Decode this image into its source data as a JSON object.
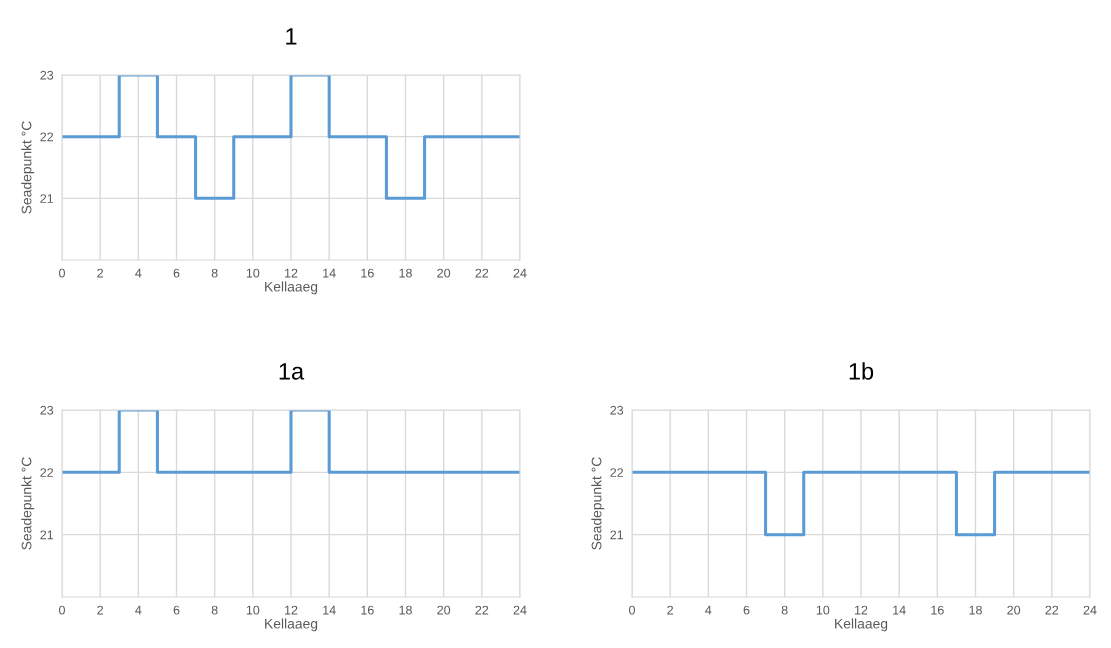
{
  "chart_data": [
    {
      "type": "step",
      "title": "1",
      "xlabel": "Kellaaeg",
      "ylabel": "Seadepunkt °C",
      "x": [
        0,
        3,
        5,
        7,
        9,
        12,
        14,
        17,
        19,
        24
      ],
      "series": [
        {
          "color": "#5b9bd5",
          "values": [
            22,
            23,
            22,
            21,
            22,
            23,
            22,
            21,
            22,
            22
          ]
        }
      ],
      "xlim": [
        0,
        24
      ],
      "xticks": [
        0,
        2,
        4,
        6,
        8,
        10,
        12,
        14,
        16,
        18,
        20,
        22,
        24
      ],
      "ylim": [
        20,
        23
      ],
      "yticks": [
        21,
        22,
        23
      ],
      "grid": true,
      "legend": false
    },
    {
      "type": "step",
      "title": "1a",
      "xlabel": "Kellaaeg",
      "ylabel": "Seadepunkt °C",
      "x": [
        0,
        3,
        5,
        12,
        14,
        24
      ],
      "series": [
        {
          "color": "#5b9bd5",
          "values": [
            22,
            23,
            22,
            23,
            22,
            22
          ]
        }
      ],
      "xlim": [
        0,
        24
      ],
      "xticks": [
        0,
        2,
        4,
        6,
        8,
        10,
        12,
        14,
        16,
        18,
        20,
        22,
        24
      ],
      "ylim": [
        20,
        23
      ],
      "yticks": [
        21,
        22,
        23
      ],
      "grid": true,
      "legend": false
    },
    {
      "type": "step",
      "title": "1b",
      "xlabel": "Kellaaeg",
      "ylabel": "Seadepunkt °C",
      "x": [
        0,
        7,
        9,
        17,
        19,
        24
      ],
      "series": [
        {
          "color": "#5b9bd5",
          "values": [
            22,
            21,
            22,
            21,
            22,
            22
          ]
        }
      ],
      "xlim": [
        0,
        24
      ],
      "xticks": [
        0,
        2,
        4,
        6,
        8,
        10,
        12,
        14,
        16,
        18,
        20,
        22,
        24
      ],
      "ylim": [
        20,
        23
      ],
      "yticks": [
        21,
        22,
        23
      ],
      "grid": true,
      "legend": false
    }
  ]
}
